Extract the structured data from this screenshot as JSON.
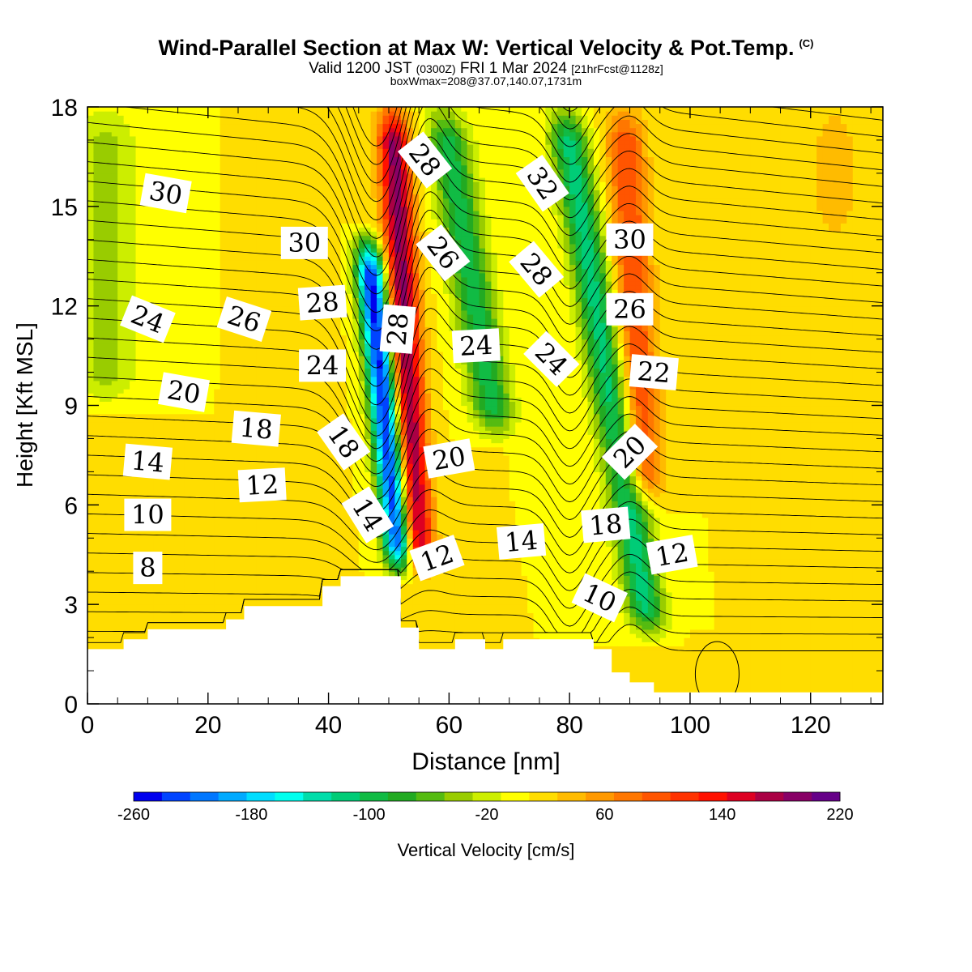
{
  "chart_data": {
    "type": "heatmap",
    "title": "Wind-Parallel Section at Max W: Vertical Velocity & Pot.Temp.",
    "title_mark": "(C)",
    "subtitle_main": "Valid 1200 JST",
    "subtitle_utc": "(0300Z)",
    "subtitle_day": "FRI 1 Mar 2024",
    "subtitle_fcst": "[21hrFcst@1128z]",
    "subtitle2": "boxWmax=208@37.07,140.07,1731m",
    "xlabel": "Distance [nm]",
    "ylabel": "Height [Kft MSL]",
    "xlim": [
      0,
      132
    ],
    "ylim": [
      0,
      18
    ],
    "x_ticks": [
      "0",
      "20",
      "40",
      "60",
      "80",
      "100",
      "120"
    ],
    "x_tick_values": [
      0,
      20,
      40,
      60,
      80,
      100,
      120
    ],
    "y_ticks": [
      "0",
      "3",
      "6",
      "9",
      "12",
      "15",
      "18"
    ],
    "y_tick_values": [
      0,
      3,
      6,
      9,
      12,
      15,
      18
    ],
    "colorbar": {
      "label": "Vertical Velocity [cm/s]",
      "tick_labels": [
        "-260",
        "-180",
        "-100",
        "-20",
        "60",
        "140",
        "220"
      ],
      "tick_values": [
        -260,
        -180,
        -100,
        -20,
        60,
        140,
        220
      ],
      "min": -260,
      "max": 220,
      "step": 20,
      "colors": [
        "#0000ee",
        "#0044ff",
        "#0077ff",
        "#00aaff",
        "#00ddff",
        "#00ffee",
        "#00ddaa",
        "#00cc77",
        "#11bb44",
        "#22aa22",
        "#55bb11",
        "#99cc00",
        "#ccee00",
        "#ffff00",
        "#ffdd00",
        "#ffbb00",
        "#ff9900",
        "#ff7700",
        "#ff5500",
        "#ff3300",
        "#ff1100",
        "#dd0022",
        "#aa0044",
        "#880066",
        "#660088"
      ]
    },
    "terrain_kft": [
      [
        0,
        1.65
      ],
      [
        6,
        1.65
      ],
      [
        6,
        1.95
      ],
      [
        10,
        1.95
      ],
      [
        10,
        2.25
      ],
      [
        23,
        2.25
      ],
      [
        23,
        2.55
      ],
      [
        26,
        2.55
      ],
      [
        26,
        2.95
      ],
      [
        39,
        2.95
      ],
      [
        39,
        3.55
      ],
      [
        42,
        3.55
      ],
      [
        42,
        3.85
      ],
      [
        48,
        3.85
      ],
      [
        48,
        3.85
      ],
      [
        52,
        3.85
      ],
      [
        52,
        2.3
      ],
      [
        55,
        2.3
      ],
      [
        55,
        1.65
      ],
      [
        61,
        1.65
      ],
      [
        61,
        1.95
      ],
      [
        66,
        1.95
      ],
      [
        66,
        1.65
      ],
      [
        69,
        1.65
      ],
      [
        69,
        1.95
      ],
      [
        84,
        1.95
      ],
      [
        84,
        1.65
      ],
      [
        87,
        1.65
      ],
      [
        87,
        0.95
      ],
      [
        90,
        0.95
      ],
      [
        90,
        0.65
      ],
      [
        94,
        0.65
      ],
      [
        94,
        0.35
      ],
      [
        132,
        0.35
      ]
    ],
    "velocity_features": [
      {
        "x": 50.5,
        "z_top": 18,
        "z_bot": 3.9,
        "slope_nm_per_kft": -0.32,
        "width_nm": 2.6,
        "peak_cm_s": 208
      },
      {
        "x": 46.5,
        "z_top": 14,
        "z_bot": 3.9,
        "slope_nm_per_kft": -0.55,
        "width_nm": 2.4,
        "peak_cm_s": -250
      },
      {
        "x": 59,
        "z_top": 18,
        "z_bot": 8,
        "slope_nm_per_kft": -0.9,
        "width_nm": 3.5,
        "peak_cm_s": -90
      },
      {
        "x": 79,
        "z_top": 18,
        "z_bot": 2,
        "slope_nm_per_kft": -0.9,
        "width_nm": 3.2,
        "peak_cm_s": -110
      },
      {
        "x": 89,
        "z_top": 18,
        "z_bot": 6,
        "slope_nm_per_kft": -0.3,
        "width_nm": 3.2,
        "peak_cm_s": 120
      },
      {
        "x": 3,
        "z_top": 18,
        "z_bot": 9,
        "slope_nm_per_kft": 0,
        "width_nm": 5,
        "peak_cm_s": -30
      },
      {
        "x": 104,
        "z_top": 1.8,
        "z_bot": 0.3,
        "slope_nm_per_kft": 0,
        "width_nm": 4,
        "peak_cm_s": 40
      }
    ],
    "theta_contour_labels": [
      {
        "text": "30",
        "x": 13,
        "z": 15.4,
        "angle": 10
      },
      {
        "text": "30",
        "x": 36,
        "z": 13.9,
        "angle": 0
      },
      {
        "text": "28",
        "x": 39,
        "z": 12.1,
        "angle": -4
      },
      {
        "text": "24",
        "x": 10,
        "z": 11.6,
        "angle": 22
      },
      {
        "text": "26",
        "x": 26,
        "z": 11.6,
        "angle": 18
      },
      {
        "text": "24",
        "x": 39,
        "z": 10.2,
        "angle": 0
      },
      {
        "text": "20",
        "x": 16,
        "z": 9.4,
        "angle": 10
      },
      {
        "text": "18",
        "x": 28,
        "z": 8.3,
        "angle": 5
      },
      {
        "text": "14",
        "x": 10,
        "z": 7.3,
        "angle": 5
      },
      {
        "text": "12",
        "x": 29,
        "z": 6.6,
        "angle": -3
      },
      {
        "text": "10",
        "x": 10,
        "z": 5.7,
        "angle": 0
      },
      {
        "text": "8",
        "x": 10,
        "z": 4.1,
        "angle": 0
      },
      {
        "text": "28",
        "x": 56,
        "z": 16.4,
        "angle": 52
      },
      {
        "text": "26",
        "x": 59,
        "z": 13.6,
        "angle": 52
      },
      {
        "text": "28",
        "x": 51.5,
        "z": 11.3,
        "angle": -85
      },
      {
        "text": "24",
        "x": 64.5,
        "z": 10.8,
        "angle": -3
      },
      {
        "text": "18",
        "x": 42.5,
        "z": 7.9,
        "angle": 55
      },
      {
        "text": "14",
        "x": 46.5,
        "z": 5.7,
        "angle": 58
      },
      {
        "text": "20",
        "x": 60,
        "z": 7.4,
        "angle": -10
      },
      {
        "text": "12",
        "x": 58,
        "z": 4.4,
        "angle": -20
      },
      {
        "text": "14",
        "x": 72,
        "z": 4.9,
        "angle": -5
      },
      {
        "text": "32",
        "x": 75.5,
        "z": 15.7,
        "angle": 55
      },
      {
        "text": "28",
        "x": 74.5,
        "z": 13.1,
        "angle": 50
      },
      {
        "text": "24",
        "x": 77,
        "z": 10.4,
        "angle": 45
      },
      {
        "text": "30",
        "x": 90,
        "z": 14.0,
        "angle": 0
      },
      {
        "text": "26",
        "x": 90,
        "z": 11.9,
        "angle": 0
      },
      {
        "text": "22",
        "x": 94,
        "z": 10.0,
        "angle": 5
      },
      {
        "text": "20",
        "x": 90,
        "z": 7.6,
        "angle": -45
      },
      {
        "text": "18",
        "x": 86,
        "z": 5.4,
        "angle": -5
      },
      {
        "text": "12",
        "x": 97,
        "z": 4.5,
        "angle": -10
      },
      {
        "text": "10",
        "x": 85,
        "z": 3.2,
        "angle": 25
      }
    ]
  }
}
